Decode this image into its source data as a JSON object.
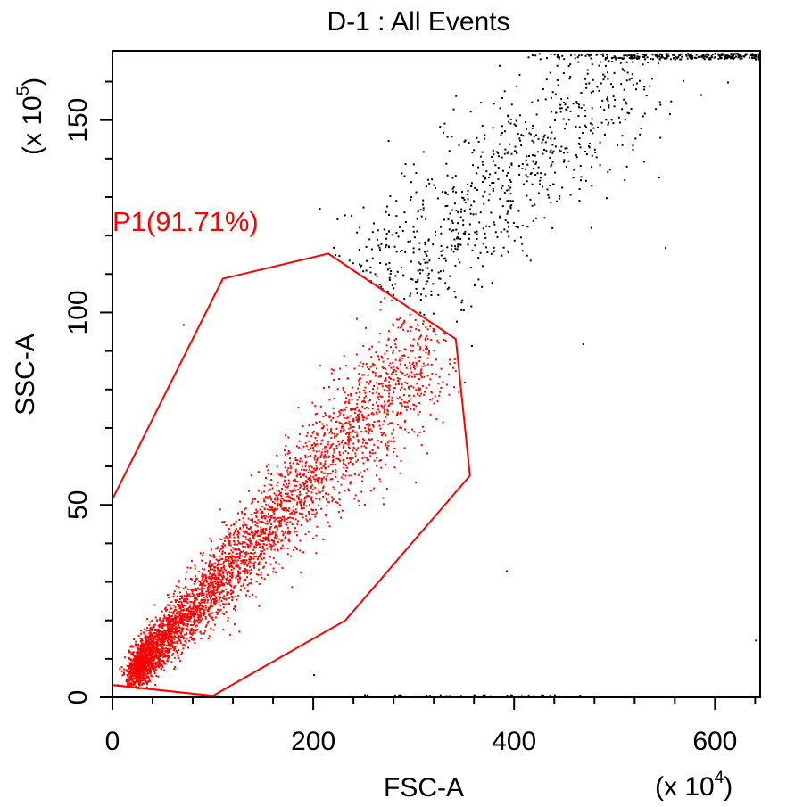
{
  "chart_data": {
    "type": "scatter",
    "title": "D-1 : All Events",
    "xlabel": "FSC-A",
    "ylabel": "SSC-A",
    "x_multiplier": "(x 10^4)",
    "y_multiplier": "(x 10^5)",
    "x_multiplier_base": "(x 10",
    "x_multiplier_exp": "4",
    "y_multiplier_base": "(x 10",
    "y_multiplier_exp": "5",
    "xlim": [
      0,
      645
    ],
    "ylim": [
      0,
      168
    ],
    "xticks": [
      0,
      200,
      400,
      600
    ],
    "yticks": [
      0,
      50,
      100,
      150
    ],
    "xtick_labels": [
      "0",
      "200",
      "400",
      "600"
    ],
    "ytick_labels": [
      "0",
      "50",
      "100",
      "150"
    ],
    "grid": false,
    "gate": {
      "label": "P1(91.71%)",
      "name": "P1",
      "percent": 91.71,
      "color": "#ff0000",
      "polygon": [
        [
          0,
          51.5
        ],
        [
          110,
          108.8
        ],
        [
          215,
          115.3
        ],
        [
          342,
          93.1
        ],
        [
          356,
          57.6
        ],
        [
          232,
          20.0
        ],
        [
          100,
          0.4
        ],
        [
          0,
          3.2
        ]
      ]
    },
    "series": [
      {
        "color": "#ff0000",
        "description_of_distribution": "dense population inside gate P1",
        "core_trend": {
          "x": [
            30,
            60,
            100,
            150,
            200,
            260,
            320
          ],
          "y": [
            3,
            16,
            30,
            45,
            58,
            76,
            95
          ]
        }
      },
      {
        "color": "#000000",
        "description_of_distribution": "events outside gate P1",
        "core_trend": {
          "x": [
            250,
            300,
            350,
            400,
            450,
            500
          ],
          "y": [
            110,
            118,
            130,
            142,
            155,
            165
          ]
        }
      }
    ]
  }
}
